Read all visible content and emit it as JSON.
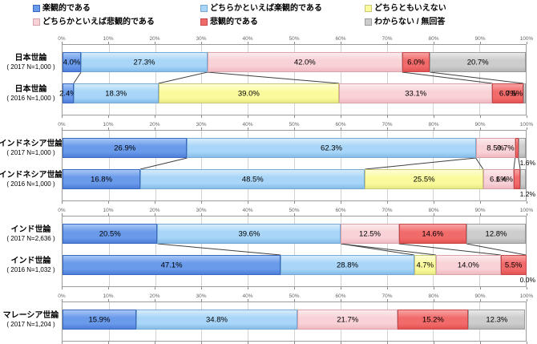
{
  "legend": {
    "items": [
      {
        "label": "楽観的である",
        "fill": "#6A9AEA",
        "light": "#A6C6F5",
        "dark": "#4D7ED9",
        "border": "#3C69C0"
      },
      {
        "label": "どちらかといえば楽観的である",
        "fill": "#A9D6F8",
        "light": "#D6ECFC",
        "dark": "#85BCE8",
        "border": "#76A9D4"
      },
      {
        "label": "どちらともいえない",
        "fill": "#FBFB9E",
        "light": "#FEFED8",
        "dark": "#E9E982",
        "border": "#C8C878"
      },
      {
        "label": "どちらかといえば悲観的である",
        "fill": "#F8D2D6",
        "light": "#FCEBED",
        "dark": "#EFB9C0",
        "border": "#D9A3AB"
      },
      {
        "label": "悲観的である",
        "fill": "#F26B6B",
        "light": "#F8A3A3",
        "dark": "#E35252",
        "border": "#C64848"
      },
      {
        "label": "わからない / 無回答",
        "fill": "#CDCDCD",
        "light": "#E9E9E9",
        "dark": "#B5B5B5",
        "border": "#9B9B9B"
      }
    ]
  },
  "chart_data": {
    "type": "bar",
    "orientation": "horizontal",
    "stacked": true,
    "unit": "%",
    "xlim": [
      0,
      100
    ],
    "grid": true,
    "x_ticks": [
      "0%",
      "10%",
      "20%",
      "30%",
      "40%",
      "50%",
      "60%",
      "70%",
      "80%",
      "90%",
      "100%"
    ],
    "categories": [
      "楽観的である",
      "どちらかといえば楽観的である",
      "どちらともいえない",
      "どちらかといえば悲観的である",
      "悲観的である",
      "わからない / 無回答"
    ],
    "groups": [
      {
        "rows": [
          {
            "name": "日本世論",
            "n": "( 2017 N=1,000 )",
            "values": [
              4.0,
              27.3,
              0,
              42.0,
              6.0,
              20.7
            ],
            "labels": [
              "4.0%",
              "27.3%",
              "",
              "42.0%",
              "6.0%",
              "20.7%"
            ],
            "label_pos": [
              "in",
              "in",
              "",
              "in",
              "in",
              "in"
            ]
          },
          {
            "name": "日本世論",
            "n": "( 2016 N=1,000 )",
            "values": [
              2.4,
              18.3,
              39.0,
              33.1,
              6.7,
              0.5
            ],
            "labels": [
              "2.4%",
              "18.3%",
              "39.0%",
              "33.1%",
              "6.7%",
              "0.5%"
            ],
            "label_pos": [
              "in",
              "in",
              "in",
              "in",
              "in",
              "end"
            ]
          }
        ]
      },
      {
        "rows": [
          {
            "name": "インドネシア世論",
            "n": "( 2017 N=1,000 )",
            "values": [
              26.9,
              62.3,
              0,
              8.5,
              0.7,
              1.6
            ],
            "labels": [
              "26.9%",
              "62.3%",
              "",
              "8.5%",
              "0.7%",
              "1.6%"
            ],
            "label_pos": [
              "in",
              "in",
              "",
              "in",
              "end",
              "below"
            ]
          },
          {
            "name": "インドネシア世論",
            "n": "( 2016 N=1,000 )",
            "values": [
              16.8,
              48.5,
              25.5,
              6.6,
              1.4,
              1.2
            ],
            "labels": [
              "16.8%",
              "48.5%",
              "25.5%",
              "6.6%",
              "1.4%",
              "1.2%"
            ],
            "label_pos": [
              "in",
              "in",
              "in",
              "in",
              "end",
              "below"
            ]
          }
        ]
      },
      {
        "rows": [
          {
            "name": "インド世論",
            "n": "( 2017 N=2,636 )",
            "values": [
              20.5,
              39.6,
              0,
              12.5,
              14.6,
              12.8
            ],
            "labels": [
              "20.5%",
              "39.6%",
              "",
              "12.5%",
              "14.6%",
              "12.8%"
            ],
            "label_pos": [
              "in",
              "in",
              "",
              "in",
              "in",
              "in"
            ]
          },
          {
            "name": "インド世論",
            "n": "( 2016 N=1,032 )",
            "values": [
              47.1,
              28.8,
              4.7,
              14.0,
              5.5,
              0.0
            ],
            "labels": [
              "47.1%",
              "28.8%",
              "4.7%",
              "14.0%",
              "5.5%",
              "0.0%"
            ],
            "label_pos": [
              "in",
              "in",
              "in",
              "in",
              "in",
              "below"
            ]
          }
        ]
      },
      {
        "rows": [
          {
            "name": "マレーシア世論",
            "n": "( 2017 N=1,204 )",
            "values": [
              15.9,
              34.8,
              0,
              21.7,
              15.2,
              12.3
            ],
            "labels": [
              "15.9%",
              "34.8%",
              "",
              "21.7%",
              "15.2%",
              "12.3%"
            ],
            "label_pos": [
              "in",
              "in",
              "",
              "in",
              "in",
              "in"
            ]
          }
        ]
      }
    ]
  }
}
